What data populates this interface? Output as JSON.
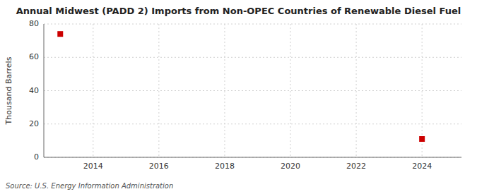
{
  "chart_data": {
    "type": "scatter",
    "title": "Annual Midwest (PADD 2) Imports from Non-OPEC Countries of Renewable Diesel Fuel",
    "ylabel": "Thousand Barrels",
    "source": "Source: U.S. Energy Information Administration",
    "x": [
      2013,
      2024
    ],
    "values": [
      74,
      11
    ],
    "color": "#cc0000",
    "marker": "square",
    "xlim": [
      2012.5,
      2025.2
    ],
    "ylim": [
      0,
      80
    ],
    "xticks": [
      2014,
      2016,
      2018,
      2020,
      2022,
      2024
    ],
    "yticks": [
      0,
      20,
      40,
      60,
      80
    ],
    "grid": true
  }
}
